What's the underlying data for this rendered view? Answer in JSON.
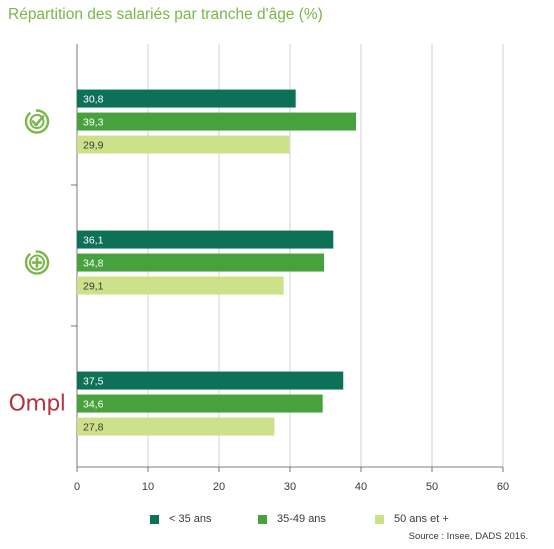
{
  "chart_data": {
    "type": "bar",
    "orientation": "horizontal",
    "title": "Répartition des salariés par tranche d'âge (%)",
    "categories": [
      {
        "icon": "check-circle-icon",
        "label": ""
      },
      {
        "icon": "plus-circle-icon",
        "label": ""
      },
      {
        "icon": "ompl-logo",
        "label": "Ompl"
      }
    ],
    "series": [
      {
        "name": "< 35 ans",
        "color": "#0d7157",
        "values": [
          30.8,
          36.1,
          37.5
        ],
        "labels": [
          "30,8",
          "36,1",
          "37,5"
        ]
      },
      {
        "name": "35-49 ans",
        "color": "#47a23e",
        "values": [
          39.3,
          34.8,
          34.6
        ],
        "labels": [
          "39,3",
          "34,8",
          "34,6"
        ]
      },
      {
        "name": "50 ans et +",
        "color": "#cde08a",
        "values": [
          29.9,
          29.1,
          27.8
        ],
        "labels": [
          "29,9",
          "29,1",
          "27,8"
        ]
      }
    ],
    "xlim": [
      0,
      60
    ],
    "xticks": [
      0,
      10,
      20,
      30,
      40,
      50,
      60
    ],
    "xtick_labels": [
      "0",
      "10",
      "20",
      "30",
      "40",
      "50",
      "60"
    ],
    "grid": true,
    "legend_position": "bottom"
  },
  "source": "Source : Insee, DADS 2016.",
  "colors": {
    "title": "#7ab648",
    "icon": "#7ab648",
    "logo": "#b5313f",
    "grid": "#bdbdbd",
    "axis": "#555555"
  }
}
